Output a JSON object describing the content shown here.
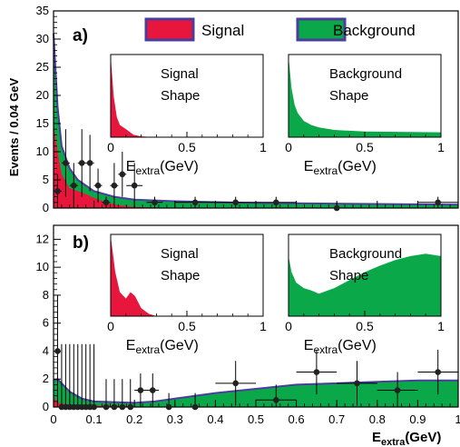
{
  "chart_data": {
    "type": "area",
    "xlabel": "E",
    "xlabel_sub": "extra",
    "xlabel_unit": "(GeV)",
    "xlim": [
      0,
      1
    ],
    "x_ticks": [
      "0",
      "0.1",
      "0.2",
      "0.3",
      "0.4",
      "0.5",
      "0.6",
      "0.7",
      "0.8",
      "0.9",
      "1"
    ],
    "legend": {
      "signal_label": "Signal",
      "background_label": "Background",
      "signal_color": "#e8153c",
      "background_color": "#0ba84a",
      "outline_color": "#4a3d9c"
    },
    "panels": [
      {
        "label": "a)",
        "ylabel": "Events / 0.04 GeV",
        "ylim": [
          0,
          35
        ],
        "y_ticks": [
          0,
          5,
          10,
          15,
          20,
          25,
          30,
          35
        ],
        "series": [
          {
            "name": "Signal",
            "x": [
              0,
              0.01,
              0.02,
              0.04,
              0.06,
              0.08,
              0.1,
              0.13,
              0.16,
              0.2,
              0.3,
              1.0
            ],
            "y": [
              15,
              10,
              6,
              3.5,
              3,
              2.5,
              1.8,
              1,
              0.5,
              0.2,
              0,
              0
            ]
          },
          {
            "name": "Background",
            "x": [
              0,
              0.01,
              0.02,
              0.04,
              0.06,
              0.1,
              0.15,
              0.2,
              0.3,
              0.5,
              1.0
            ],
            "y": [
              31,
              18,
              11,
              7,
              5,
              3,
              2,
              1.5,
              1.2,
              0.9,
              0.6
            ]
          }
        ],
        "points": [
          {
            "x": 0.01,
            "y": 3,
            "xerr": 0.01,
            "yerr": 3
          },
          {
            "x": 0.03,
            "y": 8,
            "xerr": 0.01,
            "yerr": 6
          },
          {
            "x": 0.05,
            "y": 4,
            "xerr": 0.01,
            "yerr": 4
          },
          {
            "x": 0.07,
            "y": 8,
            "xerr": 0.01,
            "yerr": 6
          },
          {
            "x": 0.09,
            "y": 8,
            "xerr": 0.01,
            "yerr": 5
          },
          {
            "x": 0.11,
            "y": 4,
            "xerr": 0.01,
            "yerr": 3
          },
          {
            "x": 0.13,
            "y": 1,
            "xerr": 0.01,
            "yerr": 1
          },
          {
            "x": 0.15,
            "y": 4,
            "xerr": 0.01,
            "yerr": 4
          },
          {
            "x": 0.17,
            "y": 6,
            "xerr": 0.01,
            "yerr": 4
          },
          {
            "x": 0.2,
            "y": 4,
            "xerr": 0.02,
            "yerr": 4
          },
          {
            "x": 0.25,
            "y": 1,
            "xerr": 0.02,
            "yerr": 1
          },
          {
            "x": 0.35,
            "y": 1,
            "xerr": 0.05,
            "yerr": 1
          },
          {
            "x": 0.45,
            "y": 1,
            "xerr": 0.05,
            "yerr": 1
          },
          {
            "x": 0.55,
            "y": 1,
            "xerr": 0.05,
            "yerr": 1
          },
          {
            "x": 0.7,
            "y": 0,
            "xerr": 0.05,
            "yerr": 1
          },
          {
            "x": 0.95,
            "y": 1,
            "xerr": 0.05,
            "yerr": 1
          }
        ],
        "inset_signal": {
          "title_line1": "Signal",
          "title_line2": "Shape",
          "x": [
            0,
            0.02,
            0.04,
            0.06,
            0.1,
            0.15,
            0.2,
            0.3,
            1
          ],
          "y": [
            1,
            0.5,
            0.25,
            0.15,
            0.1,
            0.03,
            0.01,
            0,
            0
          ]
        },
        "inset_background": {
          "title_line1": "Background",
          "title_line2": "Shape",
          "x": [
            0,
            0.02,
            0.04,
            0.06,
            0.1,
            0.15,
            0.2,
            0.3,
            0.5,
            1
          ],
          "y": [
            1,
            0.6,
            0.4,
            0.3,
            0.2,
            0.15,
            0.12,
            0.09,
            0.07,
            0.06
          ]
        }
      },
      {
        "label": "b)",
        "ylabel": "",
        "ylim": [
          0,
          13
        ],
        "y_ticks": [
          0,
          2,
          4,
          6,
          8,
          10,
          12
        ],
        "series": [
          {
            "name": "Signal",
            "x": [
              0,
              0.005,
              0.01,
              0.03,
              0.06,
              0.1,
              0.15,
              0.2,
              0.3,
              1.0
            ],
            "y": [
              0.8,
              0.5,
              0.3,
              0.2,
              0.15,
              0.1,
              0.08,
              0.04,
              0,
              0
            ]
          },
          {
            "name": "Background",
            "x": [
              0,
              0.01,
              0.04,
              0.07,
              0.1,
              0.15,
              0.2,
              0.25,
              0.3,
              0.4,
              0.5,
              0.6,
              0.7,
              0.8,
              0.9,
              1.0
            ],
            "y": [
              1.9,
              2.0,
              1.1,
              0.6,
              0.4,
              0.35,
              0.3,
              0.4,
              0.6,
              1.0,
              1.3,
              1.6,
              1.7,
              1.8,
              1.9,
              1.9
            ]
          }
        ],
        "points": [
          {
            "x": 0.01,
            "y": 4,
            "xerr": 0.005,
            "yerr": 4
          },
          {
            "x": 0.02,
            "y": 0,
            "xerr": 0.005,
            "yerr": 4.5
          },
          {
            "x": 0.03,
            "y": 0,
            "xerr": 0.005,
            "yerr": 4.5
          },
          {
            "x": 0.04,
            "y": 0,
            "xerr": 0.005,
            "yerr": 4.5
          },
          {
            "x": 0.05,
            "y": 0,
            "xerr": 0.005,
            "yerr": 4.5
          },
          {
            "x": 0.06,
            "y": 0,
            "xerr": 0.005,
            "yerr": 4.5
          },
          {
            "x": 0.07,
            "y": 0,
            "xerr": 0.005,
            "yerr": 4.5
          },
          {
            "x": 0.08,
            "y": 0,
            "xerr": 0.005,
            "yerr": 4.5
          },
          {
            "x": 0.09,
            "y": 0,
            "xerr": 0.005,
            "yerr": 4.5
          },
          {
            "x": 0.1,
            "y": 0,
            "xerr": 0.005,
            "yerr": 4.5
          },
          {
            "x": 0.13,
            "y": 0,
            "xerr": 0.005,
            "yerr": 2
          },
          {
            "x": 0.15,
            "y": 0,
            "xerr": 0.005,
            "yerr": 2
          },
          {
            "x": 0.17,
            "y": 0,
            "xerr": 0.005,
            "yerr": 2
          },
          {
            "x": 0.19,
            "y": 0,
            "xerr": 0.005,
            "yerr": 2
          },
          {
            "x": 0.215,
            "y": 1.2,
            "xerr": 0.015,
            "yerr": 1.2
          },
          {
            "x": 0.245,
            "y": 1.2,
            "xerr": 0.015,
            "yerr": 1.2
          },
          {
            "x": 0.285,
            "y": 0,
            "xerr": 0.02,
            "yerr": 1
          },
          {
            "x": 0.35,
            "y": 0,
            "xerr": 0.05,
            "yerr": 1
          },
          {
            "x": 0.45,
            "y": 1.7,
            "xerr": 0.05,
            "yerr": 1.6
          },
          {
            "x": 0.55,
            "y": 0.5,
            "xerr": 0.05,
            "yerr": 1.1
          },
          {
            "x": 0.65,
            "y": 2.5,
            "xerr": 0.05,
            "yerr": 1.6
          },
          {
            "x": 0.75,
            "y": 1.7,
            "xerr": 0.05,
            "yerr": 1.6
          },
          {
            "x": 0.85,
            "y": 1.2,
            "xerr": 0.05,
            "yerr": 1.3
          },
          {
            "x": 0.95,
            "y": 2.5,
            "xerr": 0.05,
            "yerr": 1.6
          }
        ],
        "inset_signal": {
          "title_line1": "Signal",
          "title_line2": "Shape",
          "x": [
            0,
            0.03,
            0.06,
            0.1,
            0.13,
            0.16,
            0.2,
            0.25,
            0.3,
            1
          ],
          "y": [
            1,
            0.55,
            0.3,
            0.22,
            0.3,
            0.25,
            0.1,
            0.03,
            0,
            0
          ]
        },
        "inset_background": {
          "title_line1": "Background",
          "title_line2": "Shape",
          "x": [
            0,
            0.02,
            0.05,
            0.1,
            0.15,
            0.2,
            0.3,
            0.4,
            0.5,
            0.6,
            0.7,
            0.8,
            0.9,
            1
          ],
          "y": [
            0.75,
            0.55,
            0.42,
            0.35,
            0.32,
            0.28,
            0.35,
            0.45,
            0.55,
            0.63,
            0.7,
            0.75,
            0.78,
            0.75
          ]
        }
      }
    ],
    "inset_x_ticks": [
      "0",
      "0.5",
      "1"
    ],
    "inset_xlabel": "E",
    "inset_xlabel_sub": "extra",
    "inset_xlabel_unit": "(GeV)"
  }
}
